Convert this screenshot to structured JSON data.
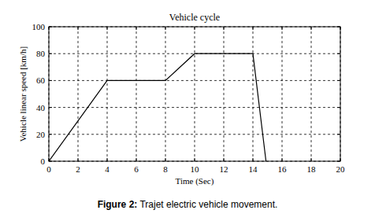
{
  "chart_data": {
    "type": "line",
    "title": "Vehicle cycle",
    "x_label": "Time (Sec)",
    "y_label": "Vehicle linear speed [km/h]",
    "caption": "Figure 2: Trajet electric vehicle movement.",
    "x": [
      0,
      4,
      8,
      10,
      14,
      14.9
    ],
    "values": [
      0,
      60,
      60,
      80,
      80,
      0
    ],
    "color": "#000000",
    "xlim": [
      0,
      20
    ],
    "xticks": [
      0,
      2,
      4,
      6,
      8,
      10,
      12,
      14,
      16,
      18,
      20
    ],
    "ylim": [
      0,
      100
    ],
    "yticks": [
      0,
      20,
      40,
      60,
      80,
      100
    ],
    "grid": true
  }
}
